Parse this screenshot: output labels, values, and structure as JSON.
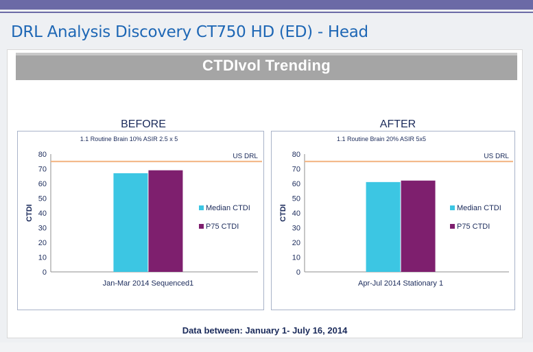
{
  "slide": {
    "title": "DRL Analysis Discovery CT750 HD (ED) - Head",
    "section_title": "CTDIvol Trending",
    "footer_note": "Data between: January 1- July 16, 2014"
  },
  "colors": {
    "median": "#3cc6e3",
    "p75": "#7e1f6e",
    "drl_line": "#f2b27e",
    "band": "#a5a5a5",
    "title": "#1e67b5"
  },
  "chart_data": [
    {
      "type": "bar",
      "heading": "BEFORE",
      "title": "1.1 Routine Brain 10% ASIR 2.5 x 5",
      "categories": [
        "Jan-Mar 2014 Sequenced1"
      ],
      "series": [
        {
          "name": "Median CTDI",
          "values": [
            67
          ]
        },
        {
          "name": "P75 CTDI",
          "values": [
            69
          ]
        }
      ],
      "reference_line": {
        "label": "US DRL",
        "value": 75
      },
      "ylabel": "CTDI",
      "ylim": [
        0,
        80
      ],
      "yticks": [
        0,
        10,
        20,
        30,
        40,
        50,
        60,
        70,
        80
      ],
      "legend_position": "right",
      "grid": false
    },
    {
      "type": "bar",
      "heading": "AFTER",
      "title": "1.1 Routine Brain 20% ASIR 5x5",
      "categories": [
        "Apr-Jul 2014 Stationary 1"
      ],
      "series": [
        {
          "name": "Median CTDI",
          "values": [
            61
          ]
        },
        {
          "name": "P75 CTDI",
          "values": [
            62
          ]
        }
      ],
      "reference_line": {
        "label": "US DRL",
        "value": 75
      },
      "ylabel": "CTDI",
      "ylim": [
        0,
        80
      ],
      "yticks": [
        0,
        10,
        20,
        30,
        40,
        50,
        60,
        70,
        80
      ],
      "legend_position": "right",
      "grid": false
    }
  ]
}
